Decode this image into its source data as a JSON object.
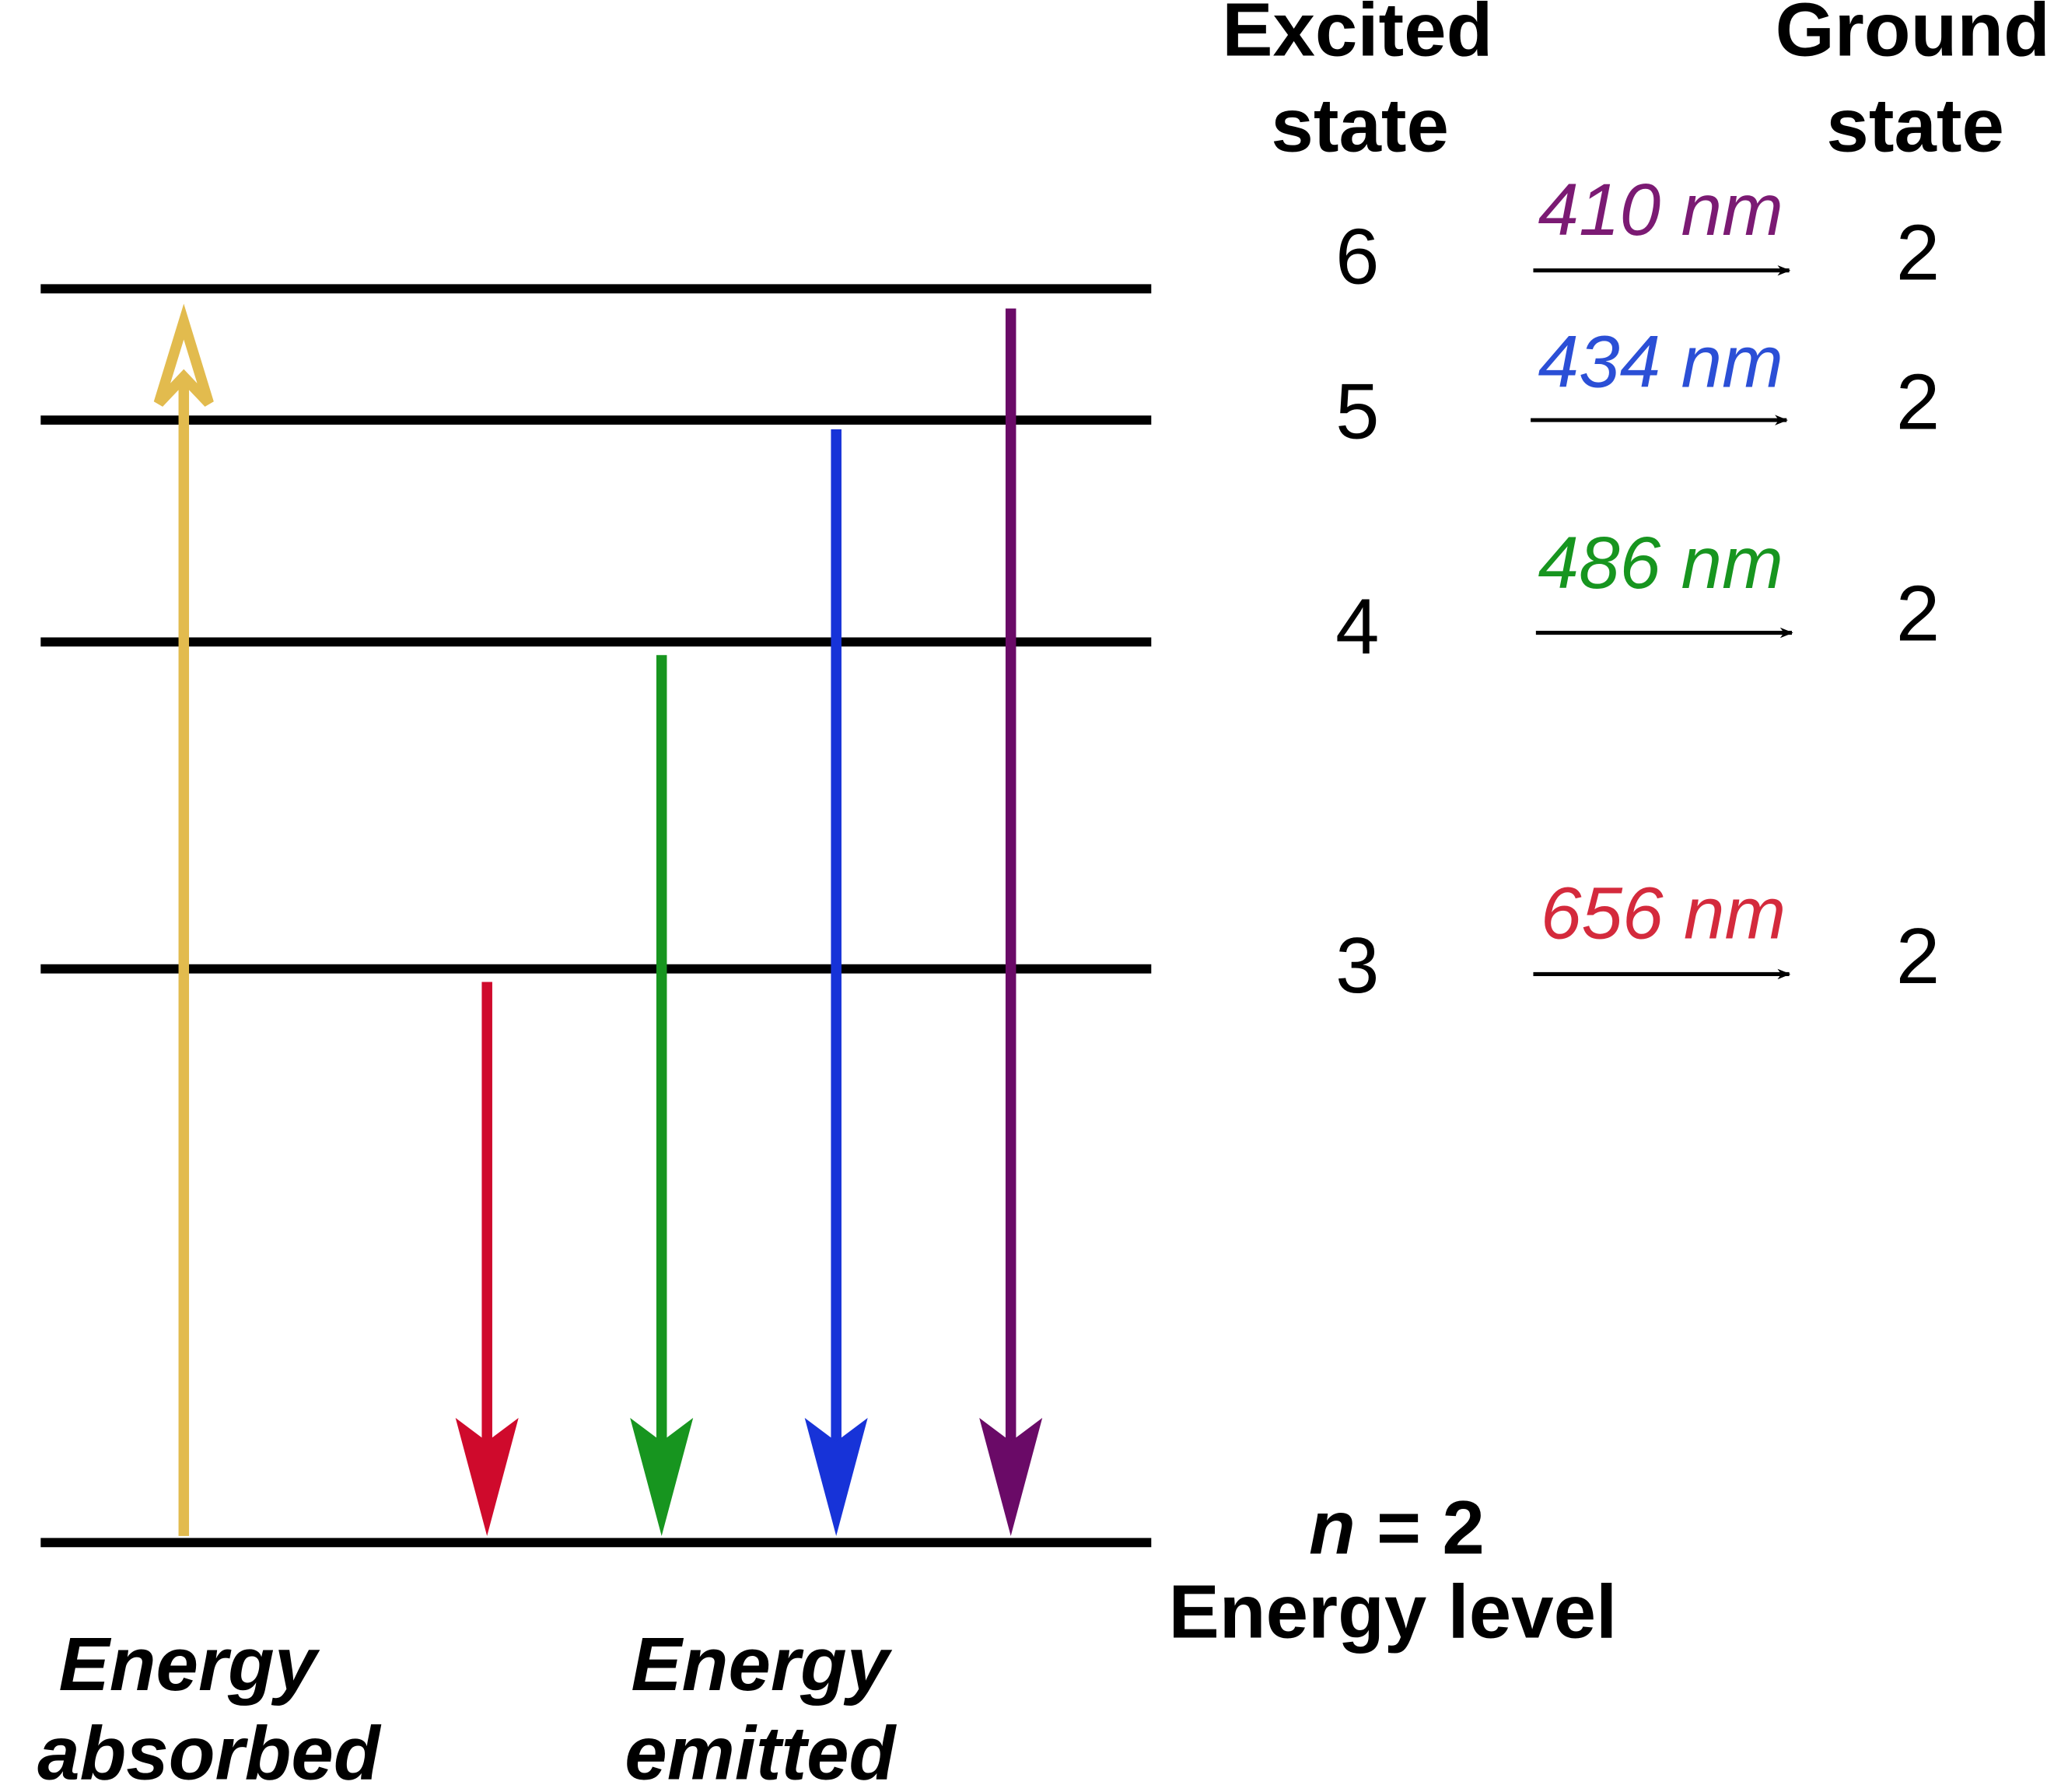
{
  "headers": {
    "excited": [
      "Excited",
      "state"
    ],
    "ground": [
      "Ground",
      "state"
    ]
  },
  "transitions": [
    {
      "excited": "6",
      "wavelength": "410 nm",
      "ground": "2"
    },
    {
      "excited": "5",
      "wavelength": "434 nm",
      "ground": "2"
    },
    {
      "excited": "4",
      "wavelength": "486 nm",
      "ground": "2"
    },
    {
      "excited": "3",
      "wavelength": "656 nm",
      "ground": "2"
    }
  ],
  "base_level": {
    "n": "n",
    "equals": " = 2",
    "caption": "Energy level"
  },
  "labels": {
    "absorbed": [
      "Energy",
      "absorbed"
    ],
    "emitted": [
      "Energy",
      "emitted"
    ]
  }
}
